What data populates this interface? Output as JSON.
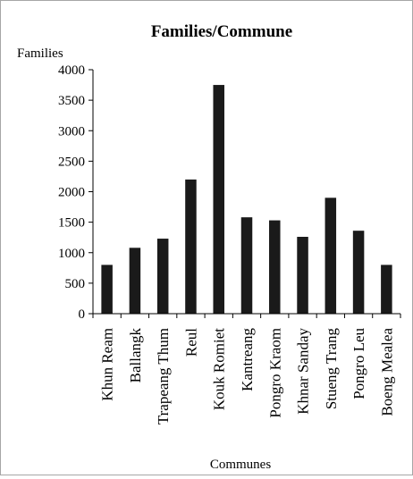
{
  "chart_data": {
    "type": "bar",
    "title": "Families/Commune",
    "xlabel": "Communes",
    "ylabel": "Families",
    "ylim": [
      0,
      4000
    ],
    "yticks": [
      0,
      500,
      1000,
      1500,
      2000,
      2500,
      3000,
      3500,
      4000
    ],
    "grid": false,
    "legend": "none",
    "bar_color": "#1a1a1a",
    "categories": [
      "Khun Ream",
      "Ballangk",
      "Trapeang Thum",
      "Reul",
      "Kouk Romiet",
      "Kantreang",
      "Pongro Kraom",
      "Khnar Sanday",
      "Stueng Trang",
      "Pongro Leu",
      "Boeng Mealea"
    ],
    "values": [
      800,
      1080,
      1230,
      2200,
      3750,
      1580,
      1530,
      1260,
      1900,
      1360,
      800
    ]
  }
}
